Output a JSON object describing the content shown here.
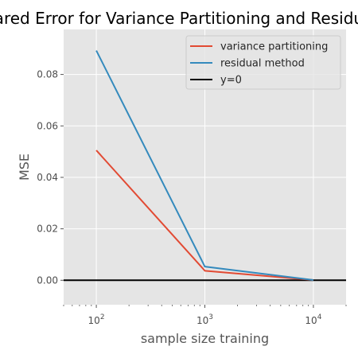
{
  "chart_data": {
    "type": "line",
    "title": "Mean Squared Error for Variance Partitioning and Residual Method",
    "xlabel": "sample size training",
    "ylabel": "MSE",
    "xscale": "log",
    "xlim": [
      50,
      20000
    ],
    "ylim": [
      -0.0095,
      0.0975
    ],
    "grid": true,
    "legend_position": "top-right",
    "x_ticks": [
      {
        "value": 100,
        "base": "10",
        "exp": "2"
      },
      {
        "value": 1000,
        "base": "10",
        "exp": "3"
      },
      {
        "value": 10000,
        "base": "10",
        "exp": "4"
      }
    ],
    "y_ticks": [
      {
        "value": 0.0,
        "label": "0.00"
      },
      {
        "value": 0.02,
        "label": "0.02"
      },
      {
        "value": 0.04,
        "label": "0.04"
      },
      {
        "value": 0.06,
        "label": "0.06"
      },
      {
        "value": 0.08,
        "label": "0.08"
      }
    ],
    "x": [
      100,
      1000,
      10000
    ],
    "series": [
      {
        "name": "variance partitioning",
        "color": "#e24a33",
        "values": [
          0.0505,
          0.0037,
          0.0001
        ]
      },
      {
        "name": "residual method",
        "color": "#348abd",
        "values": [
          0.0893,
          0.0053,
          0.0001
        ]
      }
    ],
    "reference_line": {
      "name": "y=0",
      "value": 0,
      "color": "#000000"
    }
  }
}
